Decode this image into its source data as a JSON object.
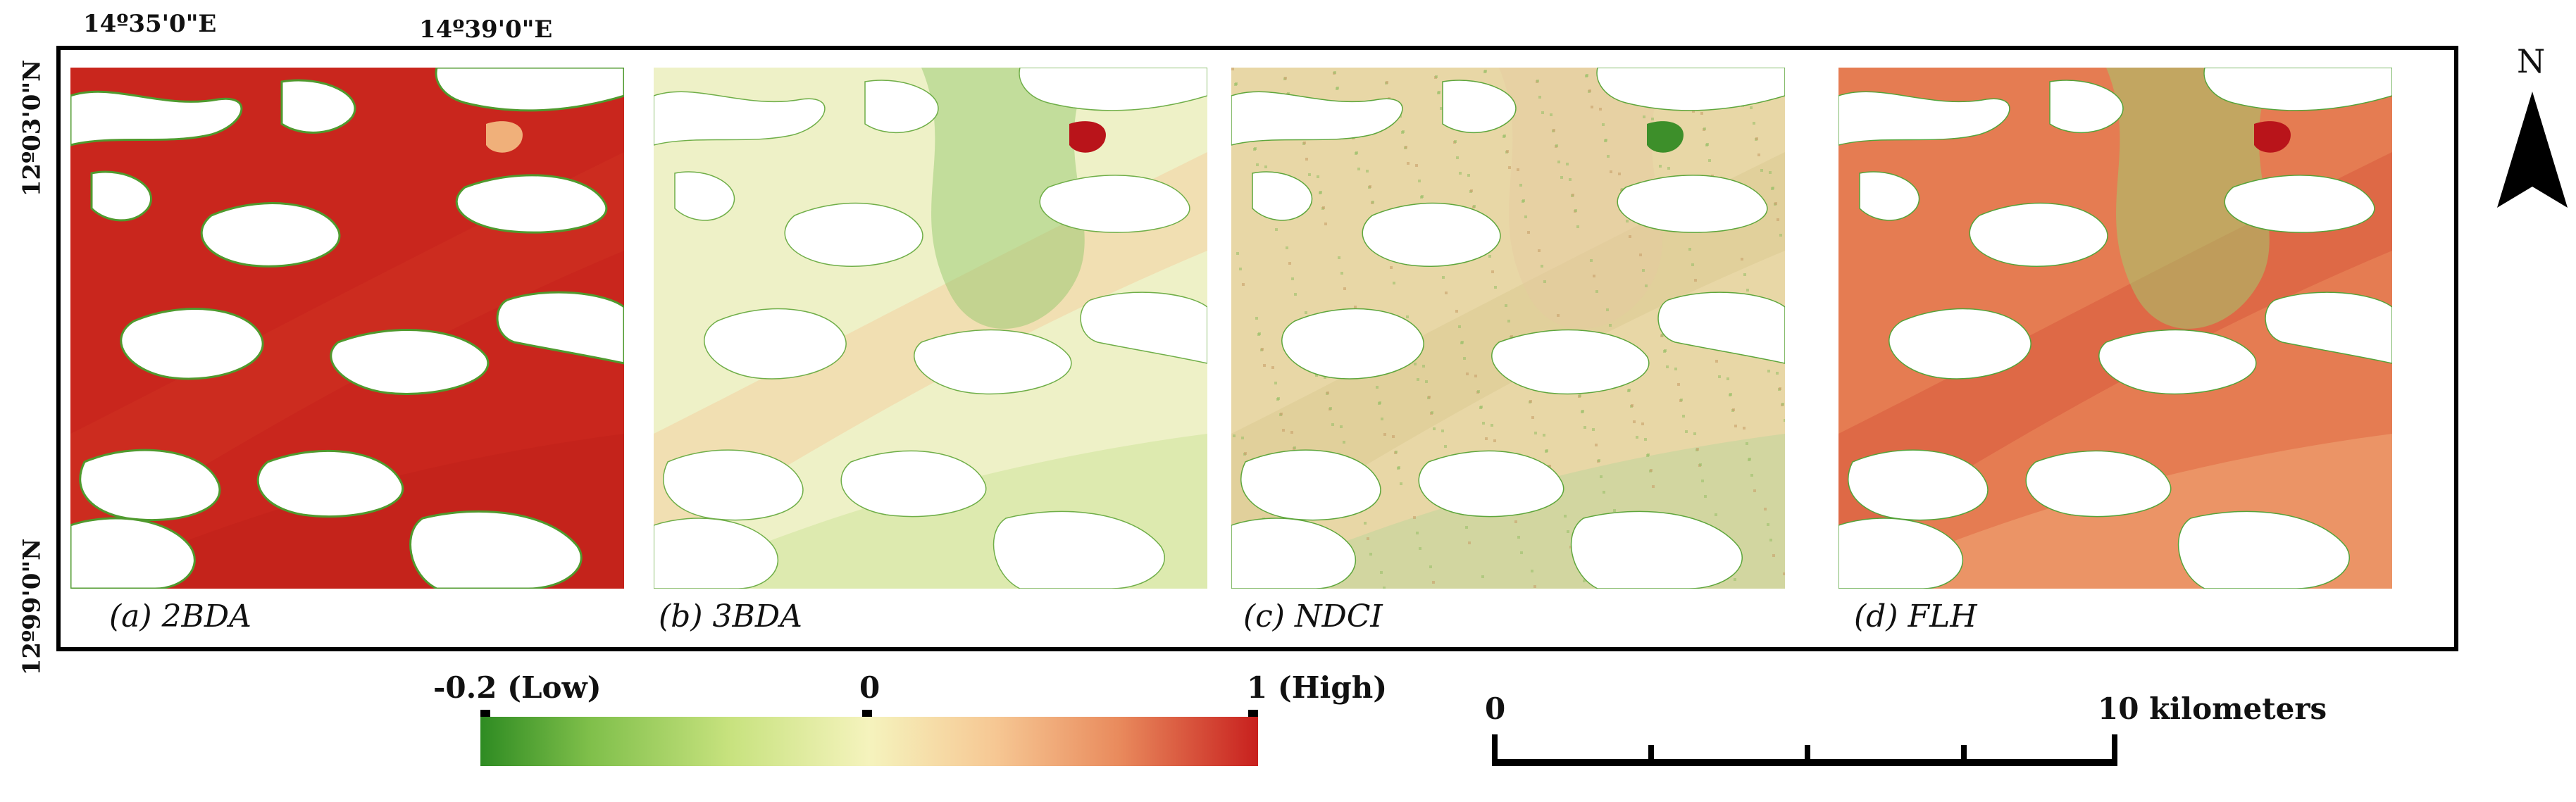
{
  "coordinates": {
    "lon_left": "14º35'0\"E",
    "lon_right": "14º39'0\"E",
    "lat_top": "12º03'0\"N",
    "lat_bottom": "12º99'0\"N"
  },
  "panels": [
    {
      "label": "(a) 2BDA",
      "palette": "red"
    },
    {
      "label": "(b) 3BDA",
      "palette": "pale"
    },
    {
      "label": "(c) NDCI",
      "palette": "speckle"
    },
    {
      "label": "(d) FLH",
      "palette": "orange"
    }
  ],
  "colorbar": {
    "low_label": "-0.2 (Low)",
    "mid_label": "0",
    "high_label": "1 (High)",
    "colors": [
      "#2e8b22",
      "#f5f3bd",
      "#c8201e"
    ]
  },
  "scale_bar": {
    "start_label": "0",
    "end_label": "10 kilometers"
  },
  "north_arrow": {
    "label": "N"
  }
}
